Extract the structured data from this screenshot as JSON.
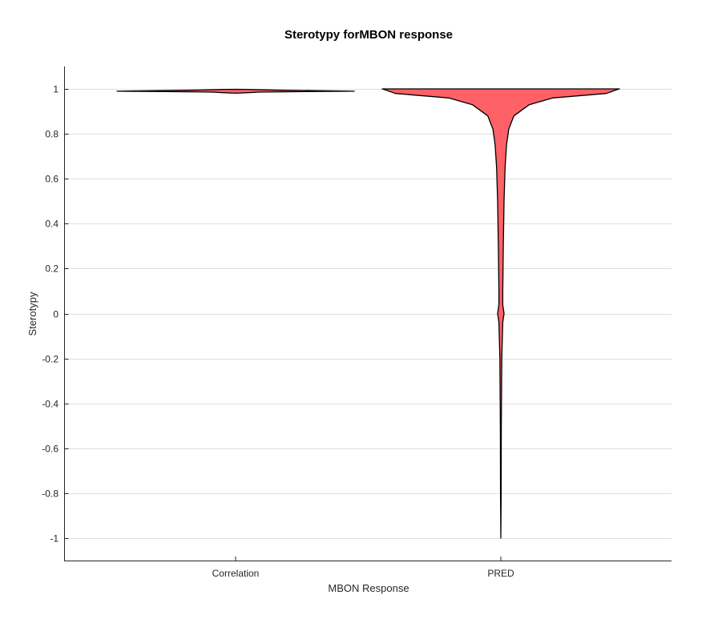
{
  "chart_data": {
    "type": "violin",
    "title": "Sterotypy forMBON response",
    "xlabel": "MBON Response",
    "ylabel": "Sterotypy",
    "categories": [
      "Correlation",
      "PRED"
    ],
    "ylim": [
      -1.1,
      1.1
    ],
    "yticks": [
      1,
      0.8,
      0.6,
      0.4,
      0.2,
      0,
      -0.2,
      -0.4,
      -0.6,
      -0.8,
      -1
    ],
    "grid": "horizontal",
    "fill_color": "#ff6168",
    "edge_color": "#000000",
    "series": [
      {
        "category": "Correlation",
        "range": [
          0.98,
          1.0
        ],
        "density_profile": [
          {
            "y": 0.99,
            "halfwidth": 1.0
          },
          {
            "y": 0.991,
            "halfwidth": 0.9
          },
          {
            "y": 0.992,
            "halfwidth": 0.7
          },
          {
            "y": 0.994,
            "halfwidth": 0.4
          },
          {
            "y": 0.996,
            "halfwidth": 0.25
          },
          {
            "y": 0.998,
            "halfwidth": 0.1
          },
          {
            "y": 0.9985,
            "halfwidth": 0.0
          },
          {
            "y": 0.988,
            "halfwidth": 0.6
          },
          {
            "y": 0.986,
            "halfwidth": 0.2
          },
          {
            "y": 0.983,
            "halfwidth": 0.09
          },
          {
            "y": 0.981,
            "halfwidth": 0.0
          }
        ]
      },
      {
        "category": "PRED",
        "range": [
          -1.0,
          1.0
        ],
        "density_profile": [
          {
            "y": 1.0,
            "halfwidth": 1.0
          },
          {
            "y": 0.995,
            "halfwidth": 0.97
          },
          {
            "y": 0.98,
            "halfwidth": 0.89
          },
          {
            "y": 0.96,
            "halfwidth": 0.44
          },
          {
            "y": 0.93,
            "halfwidth": 0.24
          },
          {
            "y": 0.88,
            "halfwidth": 0.11
          },
          {
            "y": 0.82,
            "halfwidth": 0.066
          },
          {
            "y": 0.75,
            "halfwidth": 0.048
          },
          {
            "y": 0.65,
            "halfwidth": 0.036
          },
          {
            "y": 0.5,
            "halfwidth": 0.027
          },
          {
            "y": 0.3,
            "halfwidth": 0.021
          },
          {
            "y": 0.1,
            "halfwidth": 0.016
          },
          {
            "y": 0.04,
            "halfwidth": 0.016
          },
          {
            "y": 0.0,
            "halfwidth": 0.027
          },
          {
            "y": -0.04,
            "halfwidth": 0.016
          },
          {
            "y": -0.2,
            "halfwidth": 0.008
          },
          {
            "y": -0.5,
            "halfwidth": 0.004
          },
          {
            "y": -0.8,
            "halfwidth": 0.003
          },
          {
            "y": -1.0,
            "halfwidth": 0.0
          }
        ]
      }
    ]
  }
}
